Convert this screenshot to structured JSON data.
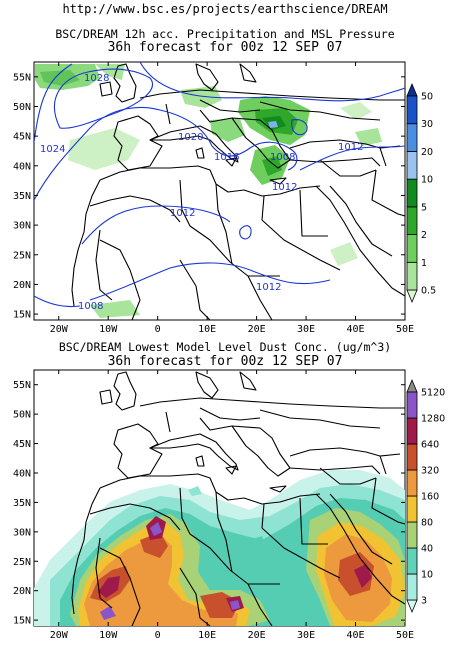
{
  "header": {
    "url": "http://www.bsc.es/projects/earthscience/DREAM"
  },
  "panel_top": {
    "title": "BSC/DREAM 12h acc. Precipitation and MSL Pressure",
    "subtitle": "36h forecast for 00z 12 SEP 07",
    "lat_labels": [
      "55N",
      "50N",
      "45N",
      "40N",
      "35N",
      "30N",
      "25N",
      "20N",
      "15N"
    ],
    "lon_labels": [
      "20W",
      "10W",
      "0",
      "10E",
      "20E",
      "30E",
      "40E",
      "50E"
    ],
    "isobar_labels": [
      "1028",
      "1024",
      "1020",
      "1016",
      "1008",
      "1012",
      "1012",
      "1012",
      "1012",
      "1008"
    ],
    "colorbar": {
      "levels": [
        "0.5",
        "1",
        "2",
        "5",
        "10",
        "20",
        "30",
        "50"
      ],
      "colors": [
        "#d9f5d2",
        "#a8e49a",
        "#6fcf5e",
        "#2fa72b",
        "#118a1f",
        "#9ac3ee",
        "#4c8ee0",
        "#1a53c9",
        "#0c2f94"
      ]
    }
  },
  "panel_bottom": {
    "title": "BSC/DREAM Lowest Model Level Dust Conc. (ug/m^3)",
    "subtitle": "36h forecast for 00z 12 SEP 07",
    "lat_labels": [
      "55N",
      "50N",
      "45N",
      "40N",
      "35N",
      "30N",
      "25N",
      "20N",
      "15N"
    ],
    "lon_labels": [
      "20W",
      "10W",
      "0",
      "10E",
      "20E",
      "30E",
      "40E",
      "50E"
    ],
    "colorbar": {
      "levels": [
        "3",
        "10",
        "40",
        "80",
        "160",
        "320",
        "640",
        "1280",
        "5120"
      ],
      "colors": [
        "#d6f7f0",
        "#a6ece0",
        "#5fd2b8",
        "#a9d277",
        "#f1c232",
        "#ec9a3d",
        "#c8502c",
        "#a0194b",
        "#8a55c8",
        "#8a8a8a"
      ]
    }
  }
}
